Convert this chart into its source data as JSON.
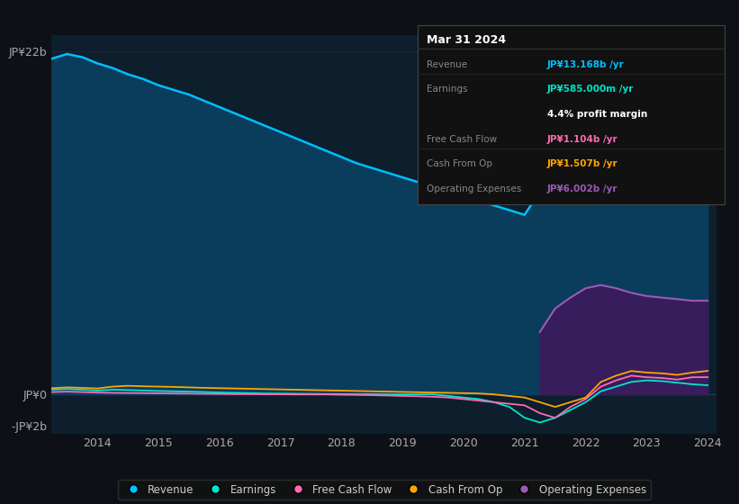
{
  "bg_color": "#0d1117",
  "plot_bg_color": "#0d1f2d",
  "years": [
    2013.25,
    2013.5,
    2013.75,
    2014.0,
    2014.25,
    2014.5,
    2014.75,
    2015.0,
    2015.25,
    2015.5,
    2015.75,
    2016.0,
    2016.25,
    2016.5,
    2016.75,
    2017.0,
    2017.25,
    2017.5,
    2017.75,
    2018.0,
    2018.25,
    2018.5,
    2018.75,
    2019.0,
    2019.25,
    2019.5,
    2019.75,
    2020.0,
    2020.25,
    2020.5,
    2020.75,
    2021.0,
    2021.25,
    2021.5,
    2021.75,
    2022.0,
    2022.25,
    2022.5,
    2022.75,
    2023.0,
    2023.25,
    2023.5,
    2023.75,
    2024.0
  ],
  "revenue": [
    21.5,
    21.8,
    21.6,
    21.2,
    20.9,
    20.5,
    20.2,
    19.8,
    19.5,
    19.2,
    18.8,
    18.4,
    18.0,
    17.6,
    17.2,
    16.8,
    16.4,
    16.0,
    15.6,
    15.2,
    14.8,
    14.5,
    14.2,
    13.9,
    13.6,
    13.3,
    13.0,
    12.7,
    12.4,
    12.1,
    11.8,
    11.5,
    13.0,
    14.5,
    15.5,
    16.0,
    16.5,
    16.2,
    15.5,
    14.8,
    14.2,
    13.8,
    13.5,
    13.168
  ],
  "earnings": [
    0.3,
    0.35,
    0.3,
    0.25,
    0.3,
    0.28,
    0.25,
    0.22,
    0.2,
    0.18,
    0.15,
    0.12,
    0.1,
    0.08,
    0.06,
    0.05,
    0.04,
    0.03,
    0.02,
    0.02,
    0.01,
    0.01,
    0.0,
    0.0,
    0.0,
    0.0,
    -0.1,
    -0.2,
    -0.3,
    -0.5,
    -0.8,
    -1.5,
    -1.8,
    -1.5,
    -1.0,
    -0.5,
    0.2,
    0.5,
    0.8,
    0.9,
    0.85,
    0.75,
    0.65,
    0.585
  ],
  "free_cash_flow": [
    0.15,
    0.18,
    0.15,
    0.12,
    0.1,
    0.09,
    0.08,
    0.07,
    0.06,
    0.05,
    0.04,
    0.03,
    0.02,
    0.02,
    0.01,
    0.01,
    0.0,
    0.0,
    0.0,
    -0.02,
    -0.03,
    -0.05,
    -0.07,
    -0.1,
    -0.12,
    -0.15,
    -0.2,
    -0.3,
    -0.4,
    -0.5,
    -0.6,
    -0.7,
    -1.2,
    -1.5,
    -0.8,
    -0.3,
    0.5,
    0.9,
    1.2,
    1.1,
    1.05,
    0.95,
    1.1,
    1.104
  ],
  "cash_from_op": [
    0.4,
    0.45,
    0.42,
    0.38,
    0.5,
    0.55,
    0.52,
    0.5,
    0.48,
    0.45,
    0.42,
    0.4,
    0.38,
    0.36,
    0.34,
    0.32,
    0.3,
    0.28,
    0.26,
    0.24,
    0.22,
    0.2,
    0.18,
    0.16,
    0.14,
    0.12,
    0.1,
    0.08,
    0.06,
    0.0,
    -0.1,
    -0.2,
    -0.5,
    -0.8,
    -0.5,
    -0.2,
    0.8,
    1.2,
    1.5,
    1.4,
    1.35,
    1.25,
    1.4,
    1.507
  ],
  "op_expenses": [
    0.0,
    0.0,
    0.0,
    0.0,
    0.0,
    0.0,
    0.0,
    0.0,
    0.0,
    0.0,
    0.0,
    0.0,
    0.0,
    0.0,
    0.0,
    0.0,
    0.0,
    0.0,
    0.0,
    0.0,
    0.0,
    0.0,
    0.0,
    0.0,
    0.0,
    0.0,
    0.0,
    0.0,
    0.0,
    0.0,
    0.0,
    0.0,
    4.0,
    5.5,
    6.2,
    6.8,
    7.0,
    6.8,
    6.5,
    6.3,
    6.2,
    6.1,
    6.0,
    6.002
  ],
  "ylim": [
    -2.5,
    23
  ],
  "yticks": [
    -2,
    0,
    22
  ],
  "ytick_labels": [
    "-JP¥2b",
    "JP¥0",
    "JP¥22b"
  ],
  "xtick_labels": [
    "2014",
    "2015",
    "2016",
    "2017",
    "2018",
    "2019",
    "2020",
    "2021",
    "2022",
    "2023",
    "2024"
  ],
  "xtick_positions": [
    2014,
    2015,
    2016,
    2017,
    2018,
    2019,
    2020,
    2021,
    2022,
    2023,
    2024
  ],
  "revenue_color": "#00bfff",
  "revenue_fill": "#0a3d5c",
  "earnings_color": "#00e5cc",
  "fcf_color": "#ff69b4",
  "cfo_color": "#ffa500",
  "opex_color": "#9b59b6",
  "opex_fill": "#3d1a5c",
  "legend_items": [
    "Revenue",
    "Earnings",
    "Free Cash Flow",
    "Cash From Op",
    "Operating Expenses"
  ],
  "legend_colors": [
    "#00bfff",
    "#00e5cc",
    "#ff69b4",
    "#ffa500",
    "#9b59b6"
  ],
  "tooltip_title": "Mar 31 2024",
  "tooltip_rows": [
    {
      "label": "Revenue",
      "value": "JP¥13.168b /yr",
      "value_color": "#00bfff"
    },
    {
      "label": "Earnings",
      "value": "JP¥585.000m /yr",
      "value_color": "#00e5cc"
    },
    {
      "label": "",
      "value": "4.4% profit margin",
      "value_color": "#ffffff"
    },
    {
      "label": "Free Cash Flow",
      "value": "JP¥1.104b /yr",
      "value_color": "#ff69b4"
    },
    {
      "label": "Cash From Op",
      "value": "JP¥1.507b /yr",
      "value_color": "#ffa500"
    },
    {
      "label": "Operating Expenses",
      "value": "JP¥6.002b /yr",
      "value_color": "#9b59b6"
    }
  ]
}
